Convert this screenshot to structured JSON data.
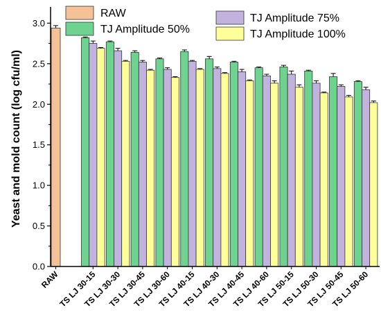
{
  "chart_data": {
    "type": "bar",
    "title": "",
    "xlabel": "",
    "ylabel": "Yeast and mold count (log cfu/ml)",
    "ylim": [
      0,
      3.2
    ],
    "yticks": [
      "0.0",
      "0.5",
      "1.0",
      "1.5",
      "2.0",
      "2.5",
      "3.0"
    ],
    "grid": false,
    "legend_placement": "top",
    "raw": {
      "name": "RAW",
      "category": "RAW",
      "value": 2.94,
      "error": 0.03,
      "color": "#f5c197"
    },
    "categories": [
      "TS LJ 30-15",
      "TS LJ 30-30",
      "TS LJ 30-45",
      "TS LJ 30-60",
      "TS LJ 40-15",
      "TS LJ 40-30",
      "TS LJ 40-45",
      "TS LJ 40-60",
      "TS LJ 50-15",
      "TS LJ 50-30",
      "TS LJ 50-45",
      "TS LJ 50-60"
    ],
    "series": [
      {
        "name": "TJ Amplitude 50%",
        "color": "#6dd38e",
        "values": [
          2.82,
          2.77,
          2.64,
          2.56,
          2.65,
          2.56,
          2.52,
          2.45,
          2.46,
          2.41,
          2.34,
          2.28
        ],
        "errors": [
          0.01,
          0.01,
          0.02,
          0.01,
          0.02,
          0.03,
          0.01,
          0.01,
          0.02,
          0.01,
          0.04,
          0.01
        ]
      },
      {
        "name": "TJ Amplitude 75%",
        "color": "#c2b3de",
        "values": [
          2.75,
          2.66,
          2.52,
          2.43,
          2.53,
          2.44,
          2.4,
          2.35,
          2.37,
          2.26,
          2.22,
          2.18
        ],
        "errors": [
          0.03,
          0.03,
          0.02,
          0.02,
          0.01,
          0.02,
          0.03,
          0.02,
          0.04,
          0.03,
          0.02,
          0.03
        ]
      },
      {
        "name": "TJ Amplitude 100%",
        "color": "#ffff99",
        "values": [
          2.69,
          2.53,
          2.42,
          2.33,
          2.43,
          2.38,
          2.29,
          2.26,
          2.21,
          2.14,
          2.09,
          2.02
        ],
        "errors": [
          0.01,
          0.01,
          0.01,
          0.01,
          0.01,
          0.01,
          0.01,
          0.03,
          0.03,
          0.01,
          0.02,
          0.02
        ]
      }
    ]
  }
}
